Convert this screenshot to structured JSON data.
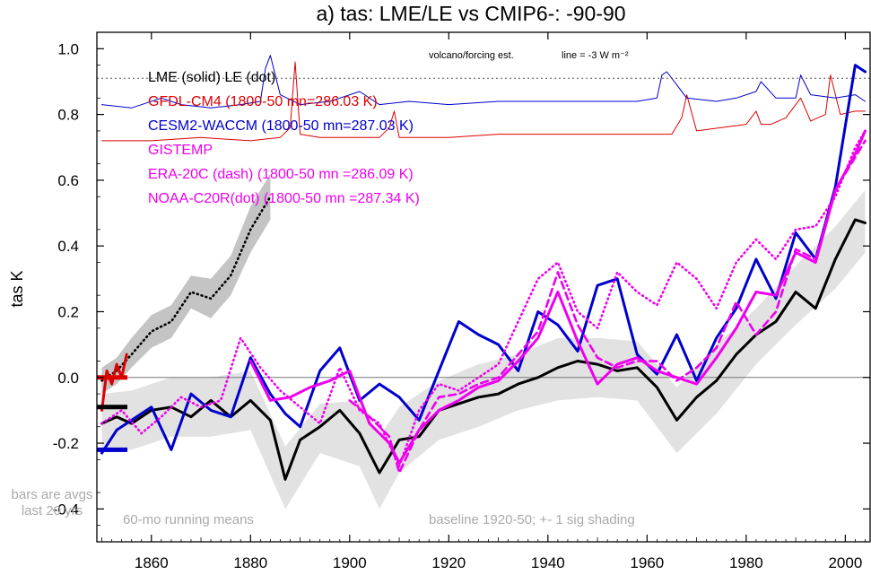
{
  "chart_data": {
    "type": "line",
    "title": "a) tas: LME/LE vs CMIP6-: -90-90",
    "ylabel": "tas K",
    "xlabel": "",
    "xlim": [
      1849,
      2005
    ],
    "ylim": [
      -0.5,
      1.05
    ],
    "x_ticks": [
      "1860",
      "1880",
      "1900",
      "1920",
      "1940",
      "1960",
      "1980",
      "2000"
    ],
    "y_ticks": [
      "1.0",
      "0.8",
      "0.6",
      "0.4",
      "0.2",
      "0.0",
      "-0.2",
      "-0.4"
    ],
    "zero_line": true,
    "legend": [
      {
        "text": "LME (solid)   LE (dot)",
        "color": "#000000"
      },
      {
        "text": "GFDL-CM4 (1800-50 mn=286.03 K)",
        "color": "#dd0000"
      },
      {
        "text": "CESM2-WACCM (1800-50 mn=287.03 K)",
        "color": "#0000cc"
      },
      {
        "text": "GISTEMP",
        "color": "#ee00ee"
      },
      {
        "text": "ERA-20C (dash) (1800-50 mn =286.09 K)",
        "color": "#ee00ee"
      },
      {
        "text": "NOAA-C20R(dot) (1800-50 mn =287.34 K)",
        "color": "#ee00ee"
      }
    ],
    "annotations": {
      "volcano": "volcano/forcing est.",
      "forcing_line": "line = -3 W m⁻²",
      "bars_note": "bars are avgs last 20 yrs",
      "running_mean": "60-mo running means",
      "baseline": "baseline 1920-50; +- 1 sig shading"
    },
    "volcano_ref_y": 0.91,
    "colors": {
      "LME": "#000000",
      "GFDL": "#dd0000",
      "CESM": "#0000cc",
      "obs": "#ee00ee",
      "shade_lme": "#e2e2e2",
      "shade_le": "#c4c4c4"
    },
    "series": [
      {
        "name": "LME (solid)",
        "color": "#000000",
        "style": "solid",
        "x": [
          1850,
          1853,
          1856,
          1860,
          1864,
          1868,
          1872,
          1876,
          1880,
          1884,
          1887,
          1890,
          1894,
          1898,
          1902,
          1906,
          1910,
          1914,
          1918,
          1922,
          1926,
          1930,
          1934,
          1938,
          1942,
          1946,
          1950,
          1954,
          1958,
          1962,
          1966,
          1970,
          1974,
          1978,
          1982,
          1986,
          1990,
          1994,
          1998,
          2002,
          2004
        ],
        "y": [
          -0.14,
          -0.12,
          -0.14,
          -0.1,
          -0.09,
          -0.12,
          -0.07,
          -0.12,
          -0.07,
          -0.13,
          -0.31,
          -0.19,
          -0.15,
          -0.1,
          -0.17,
          -0.29,
          -0.19,
          -0.18,
          -0.1,
          -0.08,
          -0.06,
          -0.05,
          -0.02,
          0.0,
          0.03,
          0.05,
          0.04,
          0.02,
          0.03,
          -0.03,
          -0.13,
          -0.06,
          -0.01,
          0.07,
          0.13,
          0.17,
          0.26,
          0.21,
          0.36,
          0.48,
          0.47
        ]
      },
      {
        "name": "LE (dot)",
        "color": "#000000",
        "style": "dot",
        "x": [
          1850,
          1853,
          1856,
          1860,
          1864,
          1868,
          1872,
          1876,
          1880,
          1884
        ],
        "y": [
          -0.01,
          0.02,
          0.07,
          0.14,
          0.17,
          0.26,
          0.24,
          0.31,
          0.45,
          0.55
        ]
      },
      {
        "name": "GFDL-CM4 (1800-50 mn=286.03 K)",
        "color": "#dd0000",
        "style": "solid",
        "x": [
          1850,
          1851,
          1852,
          1853,
          1854,
          1855
        ],
        "y": [
          -0.1,
          0.02,
          -0.02,
          0.04,
          0.0,
          0.07
        ]
      },
      {
        "name": "CESM2-WACCM (1800-50 mn=287.03 K)",
        "color": "#0000cc",
        "style": "solid",
        "x": [
          1850,
          1853,
          1856,
          1860,
          1864,
          1868,
          1872,
          1876,
          1880,
          1884,
          1887,
          1890,
          1894,
          1898,
          1902,
          1906,
          1910,
          1914,
          1918,
          1922,
          1926,
          1930,
          1934,
          1938,
          1942,
          1946,
          1950,
          1954,
          1958,
          1962,
          1966,
          1970,
          1974,
          1978,
          1982,
          1986,
          1990,
          1994,
          1998,
          2002,
          2004
        ],
        "y": [
          -0.23,
          -0.16,
          -0.13,
          -0.09,
          -0.22,
          -0.05,
          -0.1,
          -0.12,
          0.06,
          -0.05,
          -0.11,
          -0.15,
          0.02,
          0.09,
          -0.07,
          -0.02,
          -0.06,
          -0.13,
          0.02,
          0.17,
          0.13,
          0.1,
          0.02,
          0.2,
          0.16,
          0.08,
          0.28,
          0.3,
          0.07,
          0.01,
          0.13,
          -0.01,
          0.12,
          0.21,
          0.36,
          0.24,
          0.44,
          0.36,
          0.58,
          0.95,
          0.93
        ]
      },
      {
        "name": "GISTEMP",
        "color": "#ee00ee",
        "style": "solid",
        "x": [
          1880,
          1884,
          1888,
          1892,
          1896,
          1900,
          1904,
          1908,
          1910,
          1914,
          1918,
          1922,
          1926,
          1930,
          1934,
          1938,
          1942,
          1946,
          1950,
          1954,
          1958,
          1962,
          1966,
          1970,
          1974,
          1978,
          1982,
          1986,
          1990,
          1994,
          1998,
          2002,
          2004
        ],
        "y": [
          0.05,
          -0.07,
          -0.06,
          -0.03,
          -0.01,
          0.02,
          -0.14,
          -0.2,
          -0.26,
          -0.16,
          -0.1,
          -0.07,
          -0.03,
          -0.01,
          0.05,
          0.12,
          0.26,
          0.11,
          -0.02,
          0.04,
          0.06,
          0.02,
          0.0,
          -0.02,
          0.06,
          0.15,
          0.26,
          0.25,
          0.38,
          0.35,
          0.57,
          0.68,
          0.75
        ]
      },
      {
        "name": "ERA-20C (dash) (1800-50 mn =286.09 K)",
        "color": "#ee00ee",
        "style": "dash",
        "x": [
          1900,
          1904,
          1908,
          1910,
          1914,
          1918,
          1922,
          1926,
          1930,
          1934,
          1938,
          1942,
          1946,
          1950,
          1954,
          1958,
          1962,
          1966,
          1970,
          1974,
          1978,
          1982,
          1986,
          1990,
          1994,
          1998,
          2002,
          2004
        ],
        "y": [
          -0.07,
          -0.12,
          -0.18,
          -0.29,
          -0.16,
          -0.06,
          -0.05,
          -0.02,
          0.0,
          0.07,
          0.14,
          0.32,
          0.16,
          0.06,
          0.03,
          0.05,
          0.05,
          -0.01,
          0.03,
          0.09,
          0.23,
          0.13,
          0.2,
          0.39,
          0.36,
          0.57,
          0.67,
          0.72
        ]
      },
      {
        "name": "NOAA-C20R(dot) (1800-50 mn =287.34 K)",
        "color": "#ee00ee",
        "style": "dot",
        "x": [
          1850,
          1854,
          1858,
          1862,
          1866,
          1870,
          1874,
          1878,
          1882,
          1886,
          1890,
          1894,
          1898,
          1902,
          1906,
          1910,
          1914,
          1918,
          1922,
          1926,
          1930,
          1934,
          1938,
          1942,
          1946,
          1950,
          1954,
          1958,
          1962,
          1966,
          1970,
          1974,
          1978,
          1982,
          1986,
          1990,
          1994,
          1998,
          2002,
          2004
        ],
        "y": [
          -0.14,
          -0.1,
          -0.17,
          -0.12,
          -0.06,
          -0.09,
          -0.07,
          0.12,
          0.03,
          -0.04,
          -0.09,
          -0.14,
          0.03,
          -0.1,
          -0.14,
          -0.27,
          -0.1,
          -0.02,
          -0.04,
          0.0,
          0.04,
          0.17,
          0.3,
          0.35,
          0.2,
          0.15,
          0.32,
          0.26,
          0.22,
          0.35,
          0.3,
          0.21,
          0.35,
          0.42,
          0.36,
          0.45,
          0.46,
          0.55,
          0.7,
          0.75
        ]
      },
      {
        "name": "volcano forcing (GFDL)",
        "color": "#dd0000",
        "style": "solid",
        "x": [
          1850,
          1860,
          1870,
          1880,
          1886,
          1888,
          1889,
          1890,
          1894,
          1900,
          1906,
          1908,
          1909,
          1910,
          1920,
          1930,
          1940,
          1950,
          1960,
          1965,
          1967,
          1968,
          1970,
          1975,
          1980,
          1982,
          1983,
          1985,
          1988,
          1991,
          1993,
          1996,
          1997,
          1999,
          2002,
          2004
        ],
        "y": [
          0.72,
          0.72,
          0.73,
          0.72,
          0.73,
          0.76,
          0.96,
          0.74,
          0.73,
          0.73,
          0.73,
          0.76,
          0.81,
          0.73,
          0.73,
          0.74,
          0.74,
          0.74,
          0.74,
          0.74,
          0.79,
          0.86,
          0.75,
          0.76,
          0.77,
          0.81,
          0.77,
          0.77,
          0.79,
          0.85,
          0.78,
          0.8,
          0.92,
          0.8,
          0.81,
          0.81
        ]
      },
      {
        "name": "volcano forcing (CESM)",
        "color": "#0000cc",
        "style": "solid",
        "x": [
          1850,
          1856,
          1862,
          1866,
          1872,
          1878,
          1882,
          1883,
          1884,
          1886,
          1890,
          1896,
          1902,
          1906,
          1912,
          1920,
          1930,
          1940,
          1950,
          1958,
          1962,
          1963,
          1964,
          1968,
          1974,
          1978,
          1982,
          1983,
          1986,
          1990,
          1991,
          1993,
          1998,
          2002,
          2004
        ],
        "y": [
          0.83,
          0.82,
          0.85,
          0.83,
          0.82,
          0.83,
          0.84,
          0.94,
          0.98,
          0.86,
          0.83,
          0.84,
          0.87,
          0.83,
          0.84,
          0.83,
          0.84,
          0.84,
          0.84,
          0.84,
          0.85,
          0.92,
          0.93,
          0.85,
          0.84,
          0.85,
          0.87,
          0.9,
          0.85,
          0.85,
          0.92,
          0.86,
          0.85,
          0.86,
          0.84
        ]
      }
    ],
    "bands": [
      {
        "name": "LME spread",
        "color": "#e2e2e2",
        "x": [
          1850,
          1856,
          1864,
          1872,
          1880,
          1887,
          1894,
          1902,
          1906,
          1910,
          1918,
          1926,
          1934,
          1942,
          1950,
          1958,
          1966,
          1974,
          1982,
          1990,
          1998,
          2004
        ],
        "upper": [
          -0.05,
          -0.04,
          0.0,
          0.0,
          0.02,
          -0.21,
          -0.08,
          -0.07,
          -0.18,
          -0.09,
          -0.01,
          0.04,
          0.07,
          0.12,
          0.12,
          0.11,
          -0.03,
          0.1,
          0.21,
          0.34,
          0.46,
          0.57
        ],
        "lower": [
          -0.22,
          -0.22,
          -0.18,
          -0.18,
          -0.16,
          -0.4,
          -0.23,
          -0.27,
          -0.4,
          -0.29,
          -0.19,
          -0.15,
          -0.1,
          -0.07,
          -0.06,
          -0.07,
          -0.23,
          -0.11,
          0.04,
          0.16,
          0.27,
          0.38
        ]
      },
      {
        "name": "LE spread",
        "color": "#c4c4c4",
        "x": [
          1850,
          1853,
          1856,
          1860,
          1864,
          1868,
          1872,
          1876,
          1880,
          1884
        ],
        "upper": [
          0.03,
          0.06,
          0.12,
          0.19,
          0.22,
          0.31,
          0.3,
          0.37,
          0.52,
          0.62
        ],
        "lower": [
          -0.05,
          -0.02,
          0.03,
          0.09,
          0.12,
          0.21,
          0.18,
          0.25,
          0.38,
          0.48
        ]
      }
    ],
    "end_bars": [
      {
        "name": "LME bar",
        "color": "#000000",
        "value": -0.09
      },
      {
        "name": "CESM bar",
        "color": "#0000cc",
        "value": -0.22
      },
      {
        "name": "GFDL bar",
        "color": "#dd0000",
        "value": 0.0
      }
    ]
  }
}
